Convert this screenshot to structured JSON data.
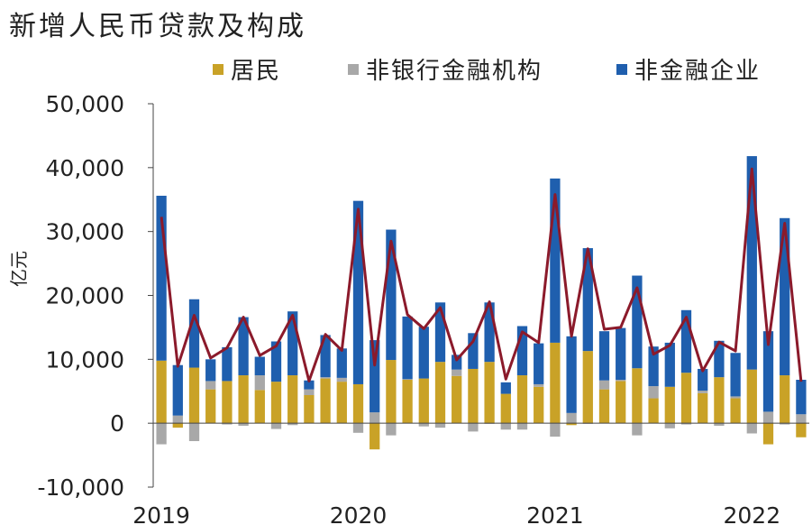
{
  "title": "新增人民币贷款及构成",
  "legend": [
    {
      "label": "居民",
      "color": "#c9a227"
    },
    {
      "label": "非银行金融机构",
      "color": "#a8a8a8"
    },
    {
      "label": "非金融企业",
      "color": "#1f5fae"
    }
  ],
  "chart_data": {
    "type": "bar",
    "title": "新增人民币贷款及构成",
    "ylabel": "亿元",
    "ylim": [
      -10000,
      50000
    ],
    "yticks": [
      -10000,
      0,
      10000,
      20000,
      30000,
      40000,
      50000
    ],
    "ytick_labels": [
      "-10,000",
      "0",
      "10,000",
      "20,000",
      "30,000",
      "40,000",
      "50,000"
    ],
    "xtick_labels": [
      "2019",
      "2020",
      "2021",
      "2022"
    ],
    "xtick_index": [
      0,
      12,
      24,
      36
    ],
    "categories": [
      "2019-01",
      "2019-02",
      "2019-03",
      "2019-04",
      "2019-05",
      "2019-06",
      "2019-07",
      "2019-08",
      "2019-09",
      "2019-10",
      "2019-11",
      "2019-12",
      "2020-01",
      "2020-02",
      "2020-03",
      "2020-04",
      "2020-05",
      "2020-06",
      "2020-07",
      "2020-08",
      "2020-09",
      "2020-10",
      "2020-11",
      "2020-12",
      "2021-01",
      "2021-02",
      "2021-03",
      "2021-04",
      "2021-05",
      "2021-06",
      "2021-07",
      "2021-08",
      "2021-09",
      "2021-10",
      "2021-11",
      "2021-12",
      "2022-01",
      "2022-02",
      "2022-03",
      "2022-04"
    ],
    "stacked": true,
    "series": [
      {
        "name": "居民",
        "color": "#c9a227",
        "values": [
          9800,
          -700,
          8700,
          5300,
          6600,
          7500,
          5200,
          6500,
          7500,
          4400,
          7000,
          6500,
          6100,
          -4100,
          9900,
          6800,
          7000,
          9600,
          7400,
          8500,
          9600,
          4600,
          7500,
          5700,
          12600,
          -300,
          11300,
          5300,
          6600,
          8600,
          3900,
          5700,
          7900,
          4700,
          7200,
          3900,
          8400,
          -3300,
          7500,
          -2200
        ]
      },
      {
        "name": "非银行金融机构",
        "color": "#a8a8a8",
        "values": [
          -3300,
          1200,
          -2800,
          1300,
          -200,
          -400,
          2300,
          -900,
          -300,
          900,
          200,
          600,
          -1500,
          1700,
          -1900,
          100,
          -500,
          -700,
          1000,
          -1300,
          -100,
          -1000,
          -1000,
          400,
          -2100,
          1600,
          -100,
          1400,
          200,
          -1900,
          1900,
          -800,
          -200,
          400,
          -400,
          300,
          -1600,
          1800,
          -200,
          1400
        ]
      },
      {
        "name": "非金融企业",
        "color": "#1f5fae",
        "values": [
          25800,
          7900,
          10700,
          3400,
          5300,
          9100,
          2900,
          6300,
          10000,
          1400,
          6600,
          4600,
          28700,
          11300,
          20400,
          9800,
          8100,
          9300,
          2300,
          5600,
          9300,
          1800,
          7700,
          6400,
          25700,
          12000,
          16100,
          7700,
          8100,
          14500,
          6200,
          6900,
          9800,
          3400,
          5700,
          6800,
          33400,
          12600,
          24600,
          5400
        ]
      }
    ],
    "total_series": {
      "name": "合计",
      "color": "#8b1a2b",
      "values": [
        32300,
        8900,
        16900,
        10200,
        11800,
        16600,
        10600,
        12100,
        16900,
        6600,
        13900,
        11400,
        33500,
        9100,
        28500,
        17000,
        14800,
        18100,
        9900,
        12800,
        19000,
        6900,
        14300,
        12600,
        35800,
        13600,
        27300,
        14700,
        15000,
        21200,
        10800,
        12200,
        16600,
        8200,
        12700,
        11300,
        39800,
        12300,
        31300,
        6500
      ]
    }
  }
}
